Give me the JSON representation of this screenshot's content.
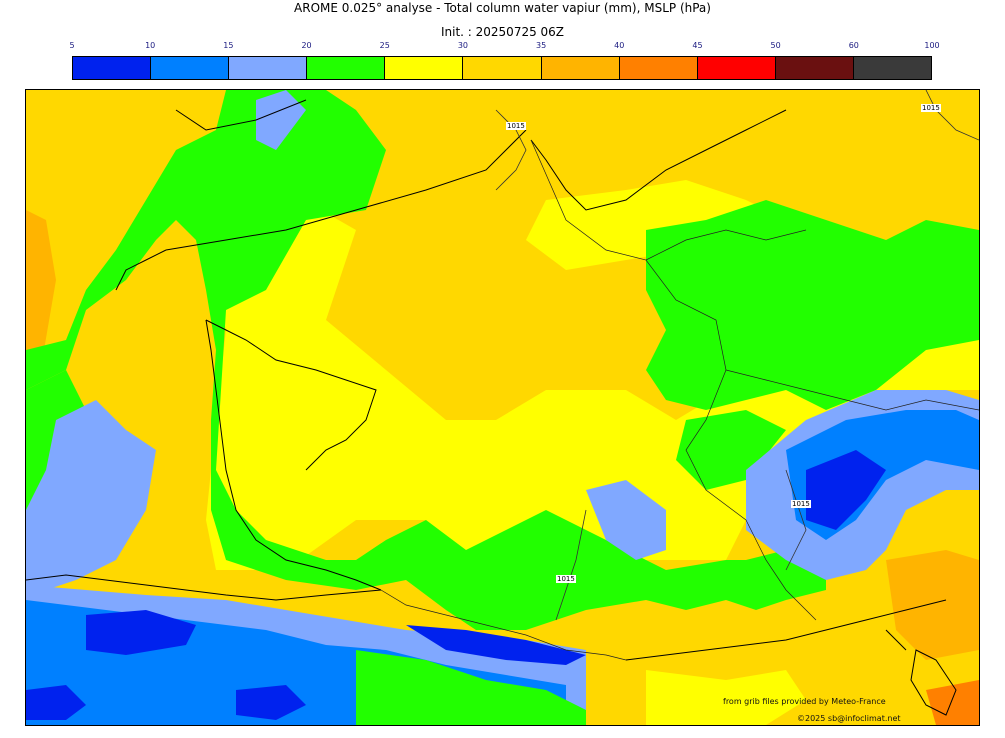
{
  "header": {
    "title": "AROME 0.025° analyse - Total column water vapiur (mm), MSLP (hPa)",
    "subtitle": "Init. : 20250725 06Z"
  },
  "legend": {
    "ticks": [
      "5",
      "10",
      "15",
      "20",
      "25",
      "30",
      "35",
      "40",
      "45",
      "50",
      "60",
      "100"
    ],
    "colors": [
      "#0022ee",
      "#0080ff",
      "#80a8ff",
      "#22ff00",
      "#ffff00",
      "#ffd800",
      "#ffb400",
      "#ff8000",
      "#ff0000",
      "#6a1010",
      "#3a3a3a"
    ]
  },
  "map": {
    "isobar_labels": [
      "1015",
      "1015",
      "1015",
      "1015"
    ]
  },
  "footer": {
    "source_credit": "from grib files provided by Meteo-France",
    "copyright": "©2025 sb@infoclimat.net"
  }
}
